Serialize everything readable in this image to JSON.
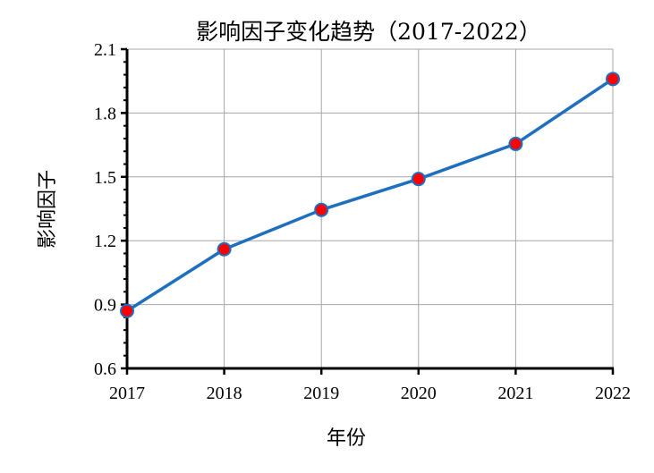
{
  "chart_data": {
    "type": "line",
    "title": "影响因子变化趋势（2017-2022）",
    "xlabel": "年份",
    "ylabel": "影响因子",
    "categories": [
      "2017",
      "2018",
      "2019",
      "2020",
      "2021",
      "2022"
    ],
    "series": [
      {
        "values": [
          0.87,
          1.16,
          1.345,
          1.49,
          1.655,
          1.96
        ]
      }
    ],
    "ylim": [
      0.6,
      2.1
    ],
    "yticks": [
      "0.6",
      "0.9",
      "1.2",
      "1.5",
      "1.8",
      "2.1"
    ],
    "grid": true,
    "line_color": "#1f6fbf",
    "marker_color": "#ff0000"
  }
}
